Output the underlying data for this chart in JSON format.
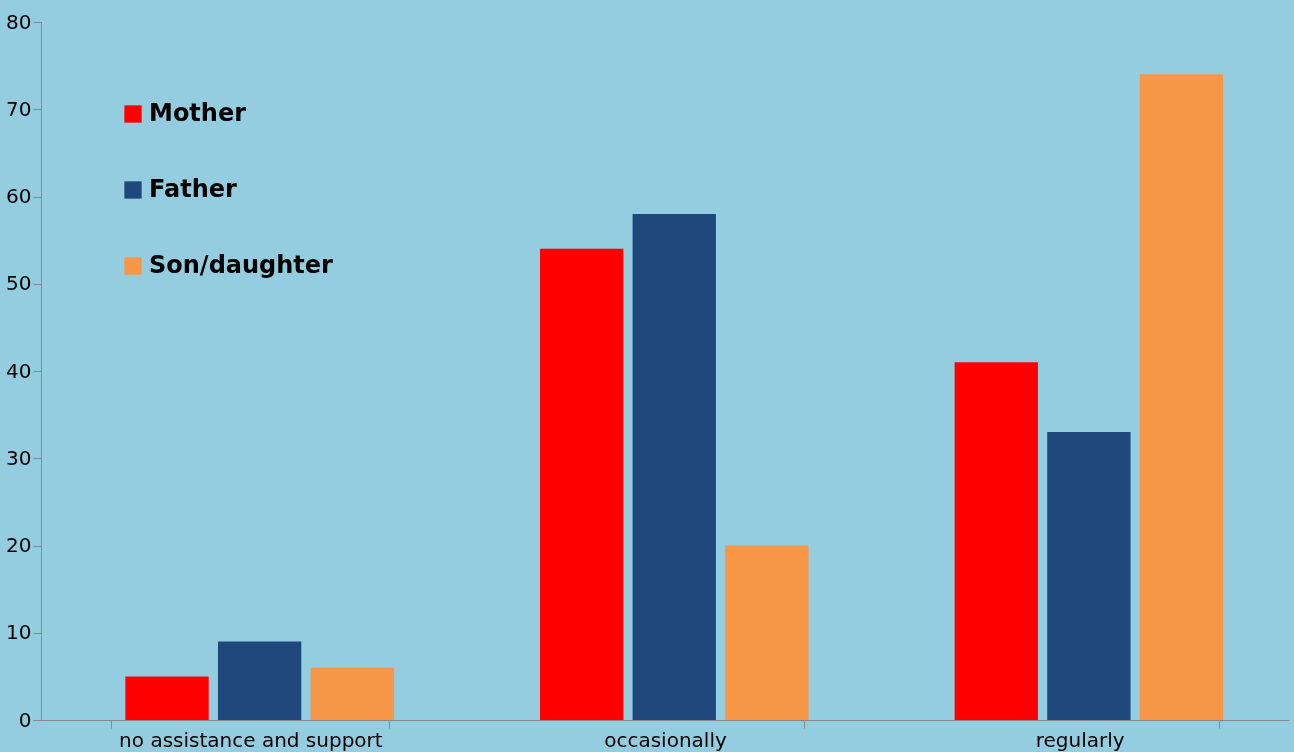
{
  "chart_data": {
    "type": "bar",
    "categories": [
      "no assistance and support",
      "occasionally",
      "regularly"
    ],
    "series": [
      {
        "name": "Mother",
        "color": "#ff0000",
        "values": [
          5,
          54,
          41
        ]
      },
      {
        "name": "Father",
        "color": "#1f497d",
        "values": [
          9,
          58,
          33
        ]
      },
      {
        "name": "Son/daughter",
        "color": "#f79646",
        "values": [
          6,
          20,
          74
        ]
      }
    ],
    "ylim": [
      0,
      80
    ],
    "yticks": [
      0,
      10,
      20,
      30,
      40,
      50,
      60,
      70,
      80
    ],
    "grid": false,
    "legend": "top left"
  }
}
